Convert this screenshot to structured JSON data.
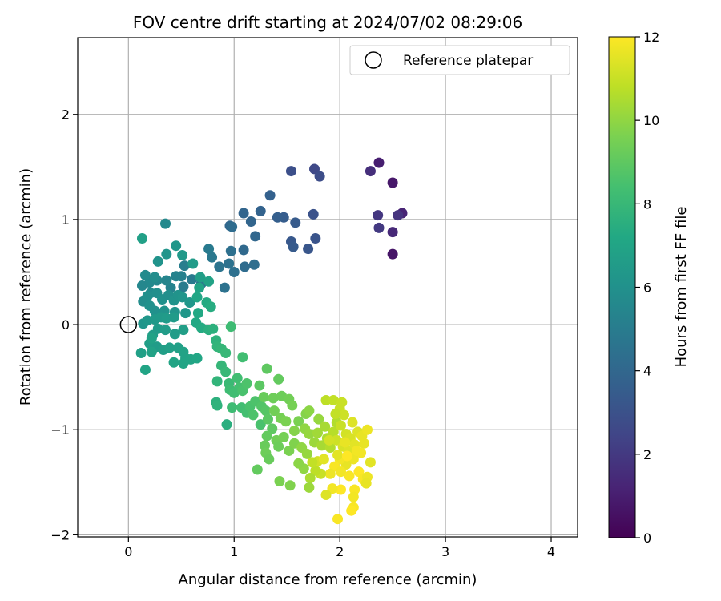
{
  "chart_data": {
    "type": "scatter",
    "title": "FOV centre drift starting at 2024/07/02 08:29:06",
    "xlabel": "Angular distance from reference (arcmin)",
    "ylabel": "Rotation from reference (arcmin)",
    "xlim": [
      -0.48,
      4.25
    ],
    "ylim": [
      -2.02,
      2.73
    ],
    "xticks": [
      0,
      1,
      2,
      3,
      4
    ],
    "xtick_labels": [
      "0",
      "1",
      "2",
      "3",
      "4"
    ],
    "yticks": [
      -2,
      -1,
      0,
      1,
      2
    ],
    "ytick_labels": [
      "−2",
      "−1",
      "0",
      "1",
      "2"
    ],
    "grid": true,
    "legend": {
      "placement": "top-right",
      "entries": [
        "Reference platepar"
      ]
    },
    "reference_point": {
      "name": "Reference platepar",
      "x": 0.0,
      "y": 0.0
    },
    "colorbar": {
      "label": "Hours from first FF file",
      "range": [
        0,
        12
      ],
      "ticks": [
        0,
        2,
        4,
        6,
        8,
        10,
        12
      ],
      "tick_labels": [
        "0",
        "2",
        "4",
        "6",
        "8",
        "10",
        "12"
      ],
      "colormap": "viridis"
    },
    "points": [
      {
        "x": 2.5,
        "y": 0.67,
        "h": 0.7
      },
      {
        "x": 2.5,
        "y": 1.35,
        "h": 0.8
      },
      {
        "x": 2.37,
        "y": 1.54,
        "h": 1.0
      },
      {
        "x": 2.5,
        "y": 0.88,
        "h": 1.4
      },
      {
        "x": 2.59,
        "y": 1.06,
        "h": 1.2
      },
      {
        "x": 2.29,
        "y": 1.46,
        "h": 1.6
      },
      {
        "x": 2.36,
        "y": 1.04,
        "h": 1.9
      },
      {
        "x": 2.37,
        "y": 0.92,
        "h": 2.0
      },
      {
        "x": 2.55,
        "y": 1.04,
        "h": 1.8
      },
      {
        "x": 1.76,
        "y": 1.48,
        "h": 2.6
      },
      {
        "x": 1.81,
        "y": 1.41,
        "h": 2.8
      },
      {
        "x": 1.54,
        "y": 1.46,
        "h": 2.9
      },
      {
        "x": 1.75,
        "y": 1.05,
        "h": 3.0
      },
      {
        "x": 1.7,
        "y": 0.72,
        "h": 3.2
      },
      {
        "x": 1.77,
        "y": 0.82,
        "h": 3.1
      },
      {
        "x": 1.54,
        "y": 0.79,
        "h": 3.3
      },
      {
        "x": 1.56,
        "y": 0.74,
        "h": 3.4
      },
      {
        "x": 1.58,
        "y": 0.97,
        "h": 3.4
      },
      {
        "x": 1.47,
        "y": 1.02,
        "h": 3.5
      },
      {
        "x": 1.41,
        "y": 1.02,
        "h": 3.6
      },
      {
        "x": 1.34,
        "y": 1.23,
        "h": 3.7
      },
      {
        "x": 1.25,
        "y": 1.08,
        "h": 3.8
      },
      {
        "x": 1.16,
        "y": 0.98,
        "h": 3.9
      },
      {
        "x": 1.09,
        "y": 1.06,
        "h": 3.9
      },
      {
        "x": 1.2,
        "y": 0.84,
        "h": 4.0
      },
      {
        "x": 1.09,
        "y": 0.71,
        "h": 4.1
      },
      {
        "x": 0.96,
        "y": 0.94,
        "h": 4.0
      },
      {
        "x": 0.98,
        "y": 0.93,
        "h": 4.2
      },
      {
        "x": 1.19,
        "y": 0.57,
        "h": 4.3
      },
      {
        "x": 1.1,
        "y": 0.55,
        "h": 4.2
      },
      {
        "x": 0.97,
        "y": 0.7,
        "h": 4.4
      },
      {
        "x": 1.0,
        "y": 0.5,
        "h": 4.4
      },
      {
        "x": 0.95,
        "y": 0.58,
        "h": 4.5
      },
      {
        "x": 0.86,
        "y": 0.55,
        "h": 4.6
      },
      {
        "x": 0.91,
        "y": 0.35,
        "h": 4.5
      },
      {
        "x": 0.79,
        "y": 0.64,
        "h": 4.8
      },
      {
        "x": 0.76,
        "y": 0.72,
        "h": 4.9
      },
      {
        "x": 0.69,
        "y": 0.39,
        "h": 4.7
      },
      {
        "x": 0.6,
        "y": 0.43,
        "h": 4.9
      },
      {
        "x": 0.52,
        "y": 0.36,
        "h": 5.0
      },
      {
        "x": 0.53,
        "y": 0.56,
        "h": 5.1
      },
      {
        "x": 0.5,
        "y": 0.46,
        "h": 5.2
      },
      {
        "x": 0.45,
        "y": 0.46,
        "h": 5.3
      },
      {
        "x": 0.4,
        "y": 0.35,
        "h": 5.3
      },
      {
        "x": 0.36,
        "y": 0.42,
        "h": 5.4
      },
      {
        "x": 0.27,
        "y": 0.42,
        "h": 5.5
      },
      {
        "x": 0.2,
        "y": 0.4,
        "h": 5.6
      },
      {
        "x": 0.13,
        "y": 0.37,
        "h": 5.5
      },
      {
        "x": 0.16,
        "y": 0.47,
        "h": 5.7
      },
      {
        "x": 0.25,
        "y": 0.45,
        "h": 5.8
      },
      {
        "x": 0.21,
        "y": 0.3,
        "h": 5.7
      },
      {
        "x": 0.14,
        "y": 0.22,
        "h": 5.8
      },
      {
        "x": 0.18,
        "y": 0.27,
        "h": 5.9
      },
      {
        "x": 0.27,
        "y": 0.3,
        "h": 5.9
      },
      {
        "x": 0.32,
        "y": 0.24,
        "h": 6.0
      },
      {
        "x": 0.38,
        "y": 0.28,
        "h": 5.9
      },
      {
        "x": 0.43,
        "y": 0.23,
        "h": 6.1
      },
      {
        "x": 0.47,
        "y": 0.28,
        "h": 6.1
      },
      {
        "x": 0.51,
        "y": 0.26,
        "h": 6.2
      },
      {
        "x": 0.58,
        "y": 0.21,
        "h": 6.3
      },
      {
        "x": 0.54,
        "y": 0.11,
        "h": 6.3
      },
      {
        "x": 0.44,
        "y": 0.12,
        "h": 6.2
      },
      {
        "x": 0.34,
        "y": 0.13,
        "h": 6.1
      },
      {
        "x": 0.25,
        "y": 0.13,
        "h": 6.0
      },
      {
        "x": 0.2,
        "y": 0.18,
        "h": 6.0
      },
      {
        "x": 0.14,
        "y": 0.01,
        "h": 6.2
      },
      {
        "x": 0.18,
        "y": 0.04,
        "h": 6.3
      },
      {
        "x": 0.25,
        "y": 0.05,
        "h": 6.4
      },
      {
        "x": 0.31,
        "y": 0.07,
        "h": 6.4
      },
      {
        "x": 0.36,
        "y": 0.06,
        "h": 6.5
      },
      {
        "x": 0.43,
        "y": 0.07,
        "h": 6.5
      },
      {
        "x": 0.28,
        "y": -0.04,
        "h": 6.5
      },
      {
        "x": 0.35,
        "y": -0.05,
        "h": 6.6
      },
      {
        "x": 0.44,
        "y": -0.09,
        "h": 6.6
      },
      {
        "x": 0.52,
        "y": -0.05,
        "h": 6.7
      },
      {
        "x": 0.23,
        "y": -0.1,
        "h": 6.6
      },
      {
        "x": 0.2,
        "y": -0.18,
        "h": 6.7
      },
      {
        "x": 0.27,
        "y": -0.21,
        "h": 6.6
      },
      {
        "x": 0.33,
        "y": -0.24,
        "h": 6.7
      },
      {
        "x": 0.39,
        "y": -0.22,
        "h": 6.8
      },
      {
        "x": 0.47,
        "y": -0.22,
        "h": 6.8
      },
      {
        "x": 0.52,
        "y": -0.26,
        "h": 6.9
      },
      {
        "x": 0.54,
        "y": -0.32,
        "h": 6.9
      },
      {
        "x": 0.52,
        "y": -0.37,
        "h": 7.0
      },
      {
        "x": 0.59,
        "y": -0.33,
        "h": 7.0
      },
      {
        "x": 0.65,
        "y": -0.32,
        "h": 7.1
      },
      {
        "x": 0.43,
        "y": -0.36,
        "h": 7.0
      },
      {
        "x": 0.22,
        "y": -0.26,
        "h": 6.9
      },
      {
        "x": 0.12,
        "y": -0.27,
        "h": 6.8
      },
      {
        "x": 0.16,
        "y": -0.43,
        "h": 7.0
      },
      {
        "x": 0.22,
        "y": -0.13,
        "h": 6.9
      },
      {
        "x": 0.13,
        "y": 0.82,
        "h": 6.8
      },
      {
        "x": 0.28,
        "y": 0.6,
        "h": 6.1
      },
      {
        "x": 0.35,
        "y": 0.96,
        "h": 5.6
      },
      {
        "x": 0.36,
        "y": 0.67,
        "h": 6.2
      },
      {
        "x": 0.45,
        "y": 0.75,
        "h": 6.3
      },
      {
        "x": 0.51,
        "y": 0.66,
        "h": 6.4
      },
      {
        "x": 0.61,
        "y": 0.58,
        "h": 6.5
      },
      {
        "x": 0.68,
        "y": 0.45,
        "h": 6.7
      },
      {
        "x": 0.76,
        "y": 0.41,
        "h": 6.9
      },
      {
        "x": 0.67,
        "y": 0.35,
        "h": 7.0
      },
      {
        "x": 0.65,
        "y": 0.26,
        "h": 7.1
      },
      {
        "x": 0.74,
        "y": 0.21,
        "h": 7.3
      },
      {
        "x": 0.78,
        "y": 0.17,
        "h": 7.4
      },
      {
        "x": 0.66,
        "y": 0.11,
        "h": 7.2
      },
      {
        "x": 0.64,
        "y": 0.02,
        "h": 7.2
      },
      {
        "x": 0.69,
        "y": -0.03,
        "h": 7.3
      },
      {
        "x": 0.76,
        "y": -0.05,
        "h": 7.5
      },
      {
        "x": 0.8,
        "y": -0.04,
        "h": 7.6
      },
      {
        "x": 0.83,
        "y": -0.15,
        "h": 7.7
      },
      {
        "x": 0.84,
        "y": -0.21,
        "h": 7.8
      },
      {
        "x": 0.88,
        "y": -0.23,
        "h": 7.9
      },
      {
        "x": 0.92,
        "y": -0.27,
        "h": 8.0
      },
      {
        "x": 0.97,
        "y": -0.02,
        "h": 8.2
      },
      {
        "x": 1.08,
        "y": -0.31,
        "h": 8.3
      },
      {
        "x": 0.88,
        "y": -0.39,
        "h": 7.9
      },
      {
        "x": 0.84,
        "y": -0.54,
        "h": 7.8
      },
      {
        "x": 0.83,
        "y": -0.74,
        "h": 7.6
      },
      {
        "x": 0.84,
        "y": -0.77,
        "h": 7.7
      },
      {
        "x": 0.93,
        "y": -0.95,
        "h": 7.5
      },
      {
        "x": 0.92,
        "y": -0.45,
        "h": 8.0
      },
      {
        "x": 0.95,
        "y": -0.56,
        "h": 8.1
      },
      {
        "x": 0.96,
        "y": -0.62,
        "h": 8.2
      },
      {
        "x": 1.03,
        "y": -0.51,
        "h": 8.3
      },
      {
        "x": 1.05,
        "y": -0.6,
        "h": 8.4
      },
      {
        "x": 1.0,
        "y": -0.65,
        "h": 8.3
      },
      {
        "x": 1.08,
        "y": -0.63,
        "h": 8.5
      },
      {
        "x": 1.12,
        "y": -0.56,
        "h": 8.6
      },
      {
        "x": 0.98,
        "y": -0.79,
        "h": 8.2
      },
      {
        "x": 1.07,
        "y": -0.79,
        "h": 8.3
      },
      {
        "x": 1.12,
        "y": -0.84,
        "h": 8.4
      },
      {
        "x": 1.15,
        "y": -0.78,
        "h": 8.5
      },
      {
        "x": 1.2,
        "y": -0.73,
        "h": 8.6
      },
      {
        "x": 1.26,
        "y": -0.78,
        "h": 8.7
      },
      {
        "x": 1.25,
        "y": -0.95,
        "h": 8.5
      },
      {
        "x": 1.18,
        "y": -0.86,
        "h": 8.6
      },
      {
        "x": 1.3,
        "y": -0.82,
        "h": 8.8
      },
      {
        "x": 1.32,
        "y": -0.9,
        "h": 8.9
      },
      {
        "x": 1.24,
        "y": -0.58,
        "h": 8.9
      },
      {
        "x": 1.31,
        "y": -0.42,
        "h": 9.0
      },
      {
        "x": 1.42,
        "y": -0.52,
        "h": 9.1
      },
      {
        "x": 1.28,
        "y": -0.69,
        "h": 9.2
      },
      {
        "x": 1.37,
        "y": -0.7,
        "h": 9.3
      },
      {
        "x": 1.45,
        "y": -0.68,
        "h": 9.3
      },
      {
        "x": 1.52,
        "y": -0.71,
        "h": 9.4
      },
      {
        "x": 1.55,
        "y": -0.77,
        "h": 9.5
      },
      {
        "x": 1.38,
        "y": -0.82,
        "h": 9.4
      },
      {
        "x": 1.44,
        "y": -0.89,
        "h": 9.5
      },
      {
        "x": 1.49,
        "y": -0.92,
        "h": 9.6
      },
      {
        "x": 1.36,
        "y": -0.99,
        "h": 9.0
      },
      {
        "x": 1.31,
        "y": -1.06,
        "h": 9.1
      },
      {
        "x": 1.29,
        "y": -1.15,
        "h": 9.2
      },
      {
        "x": 1.3,
        "y": -1.22,
        "h": 9.3
      },
      {
        "x": 1.33,
        "y": -1.28,
        "h": 9.2
      },
      {
        "x": 1.4,
        "y": -1.1,
        "h": 9.4
      },
      {
        "x": 1.47,
        "y": -1.07,
        "h": 9.5
      },
      {
        "x": 1.42,
        "y": -1.16,
        "h": 9.3
      },
      {
        "x": 1.52,
        "y": -1.2,
        "h": 9.6
      },
      {
        "x": 1.57,
        "y": -1.13,
        "h": 9.7
      },
      {
        "x": 1.57,
        "y": -1.01,
        "h": 9.8
      },
      {
        "x": 1.61,
        "y": -0.92,
        "h": 9.6
      },
      {
        "x": 1.68,
        "y": -0.85,
        "h": 9.8
      },
      {
        "x": 1.71,
        "y": -0.82,
        "h": 9.9
      },
      {
        "x": 1.67,
        "y": -0.99,
        "h": 10.0
      },
      {
        "x": 1.71,
        "y": -1.04,
        "h": 10.1
      },
      {
        "x": 1.64,
        "y": -1.17,
        "h": 10.0
      },
      {
        "x": 1.69,
        "y": -1.23,
        "h": 10.1
      },
      {
        "x": 1.76,
        "y": -1.12,
        "h": 10.2
      },
      {
        "x": 1.79,
        "y": -1.03,
        "h": 10.3
      },
      {
        "x": 1.8,
        "y": -0.9,
        "h": 10.1
      },
      {
        "x": 1.86,
        "y": -0.97,
        "h": 10.4
      },
      {
        "x": 1.88,
        "y": -1.08,
        "h": 10.5
      },
      {
        "x": 1.83,
        "y": -1.15,
        "h": 10.4
      },
      {
        "x": 1.91,
        "y": -1.17,
        "h": 10.6
      },
      {
        "x": 1.94,
        "y": -1.02,
        "h": 10.7
      },
      {
        "x": 1.97,
        "y": -0.93,
        "h": 10.6
      },
      {
        "x": 1.87,
        "y": -0.72,
        "h": 10.8
      },
      {
        "x": 1.94,
        "y": -0.72,
        "h": 10.9
      },
      {
        "x": 2.0,
        "y": -0.8,
        "h": 11.0
      },
      {
        "x": 2.04,
        "y": -0.86,
        "h": 11.1
      },
      {
        "x": 2.01,
        "y": -0.96,
        "h": 11.0
      },
      {
        "x": 2.06,
        "y": -1.04,
        "h": 11.2
      },
      {
        "x": 1.97,
        "y": -1.1,
        "h": 11.1
      },
      {
        "x": 2.03,
        "y": -1.16,
        "h": 11.3
      },
      {
        "x": 2.08,
        "y": -1.2,
        "h": 11.4
      },
      {
        "x": 2.1,
        "y": -1.08,
        "h": 11.3
      },
      {
        "x": 2.14,
        "y": -1.14,
        "h": 11.5
      },
      {
        "x": 2.17,
        "y": -1.02,
        "h": 11.4
      },
      {
        "x": 2.21,
        "y": -1.06,
        "h": 11.6
      },
      {
        "x": 2.26,
        "y": -1.0,
        "h": 11.7
      },
      {
        "x": 2.23,
        "y": -1.13,
        "h": 11.6
      },
      {
        "x": 2.2,
        "y": -1.22,
        "h": 11.8
      },
      {
        "x": 2.13,
        "y": -1.28,
        "h": 11.7
      },
      {
        "x": 2.06,
        "y": -1.33,
        "h": 11.6
      },
      {
        "x": 2.0,
        "y": -1.28,
        "h": 11.8
      },
      {
        "x": 1.95,
        "y": -1.35,
        "h": 11.9
      },
      {
        "x": 1.91,
        "y": -1.42,
        "h": 11.7
      },
      {
        "x": 2.01,
        "y": -1.4,
        "h": 11.8
      },
      {
        "x": 2.09,
        "y": -1.44,
        "h": 11.9
      },
      {
        "x": 2.18,
        "y": -1.4,
        "h": 12.0
      },
      {
        "x": 2.22,
        "y": -1.47,
        "h": 11.9
      },
      {
        "x": 2.26,
        "y": -1.45,
        "h": 11.7
      },
      {
        "x": 2.25,
        "y": -1.51,
        "h": 11.6
      },
      {
        "x": 2.29,
        "y": -1.31,
        "h": 11.5
      },
      {
        "x": 2.14,
        "y": -1.57,
        "h": 11.9
      },
      {
        "x": 2.13,
        "y": -1.64,
        "h": 11.8
      },
      {
        "x": 2.13,
        "y": -1.74,
        "h": 11.9
      },
      {
        "x": 2.11,
        "y": -1.77,
        "h": 12.0
      },
      {
        "x": 2.01,
        "y": -1.57,
        "h": 12.0
      },
      {
        "x": 1.93,
        "y": -1.56,
        "h": 11.8
      },
      {
        "x": 1.98,
        "y": -1.85,
        "h": 11.9
      },
      {
        "x": 1.87,
        "y": -1.62,
        "h": 11.4
      },
      {
        "x": 1.82,
        "y": -1.42,
        "h": 11.0
      },
      {
        "x": 1.77,
        "y": -1.39,
        "h": 10.8
      },
      {
        "x": 1.79,
        "y": -1.3,
        "h": 11.2
      },
      {
        "x": 1.85,
        "y": -1.28,
        "h": 11.5
      },
      {
        "x": 1.74,
        "y": -1.31,
        "h": 10.9
      },
      {
        "x": 1.72,
        "y": -1.46,
        "h": 10.5
      },
      {
        "x": 1.71,
        "y": -1.55,
        "h": 10.2
      },
      {
        "x": 1.66,
        "y": -1.37,
        "h": 10.0
      },
      {
        "x": 1.61,
        "y": -1.32,
        "h": 9.9
      },
      {
        "x": 1.53,
        "y": -1.53,
        "h": 9.7
      },
      {
        "x": 1.43,
        "y": -1.49,
        "h": 9.6
      },
      {
        "x": 1.22,
        "y": -1.38,
        "h": 9.1
      },
      {
        "x": 1.9,
        "y": -1.1,
        "h": 11.2
      },
      {
        "x": 2.05,
        "y": -1.12,
        "h": 11.6
      },
      {
        "x": 2.16,
        "y": -1.2,
        "h": 11.8
      },
      {
        "x": 2.12,
        "y": -0.93,
        "h": 11.4
      },
      {
        "x": 1.98,
        "y": -1.24,
        "h": 11.5
      },
      {
        "x": 2.07,
        "y": -1.25,
        "h": 12.0
      },
      {
        "x": 1.96,
        "y": -0.85,
        "h": 10.9
      },
      {
        "x": 2.02,
        "y": -0.74,
        "h": 11.0
      }
    ]
  }
}
